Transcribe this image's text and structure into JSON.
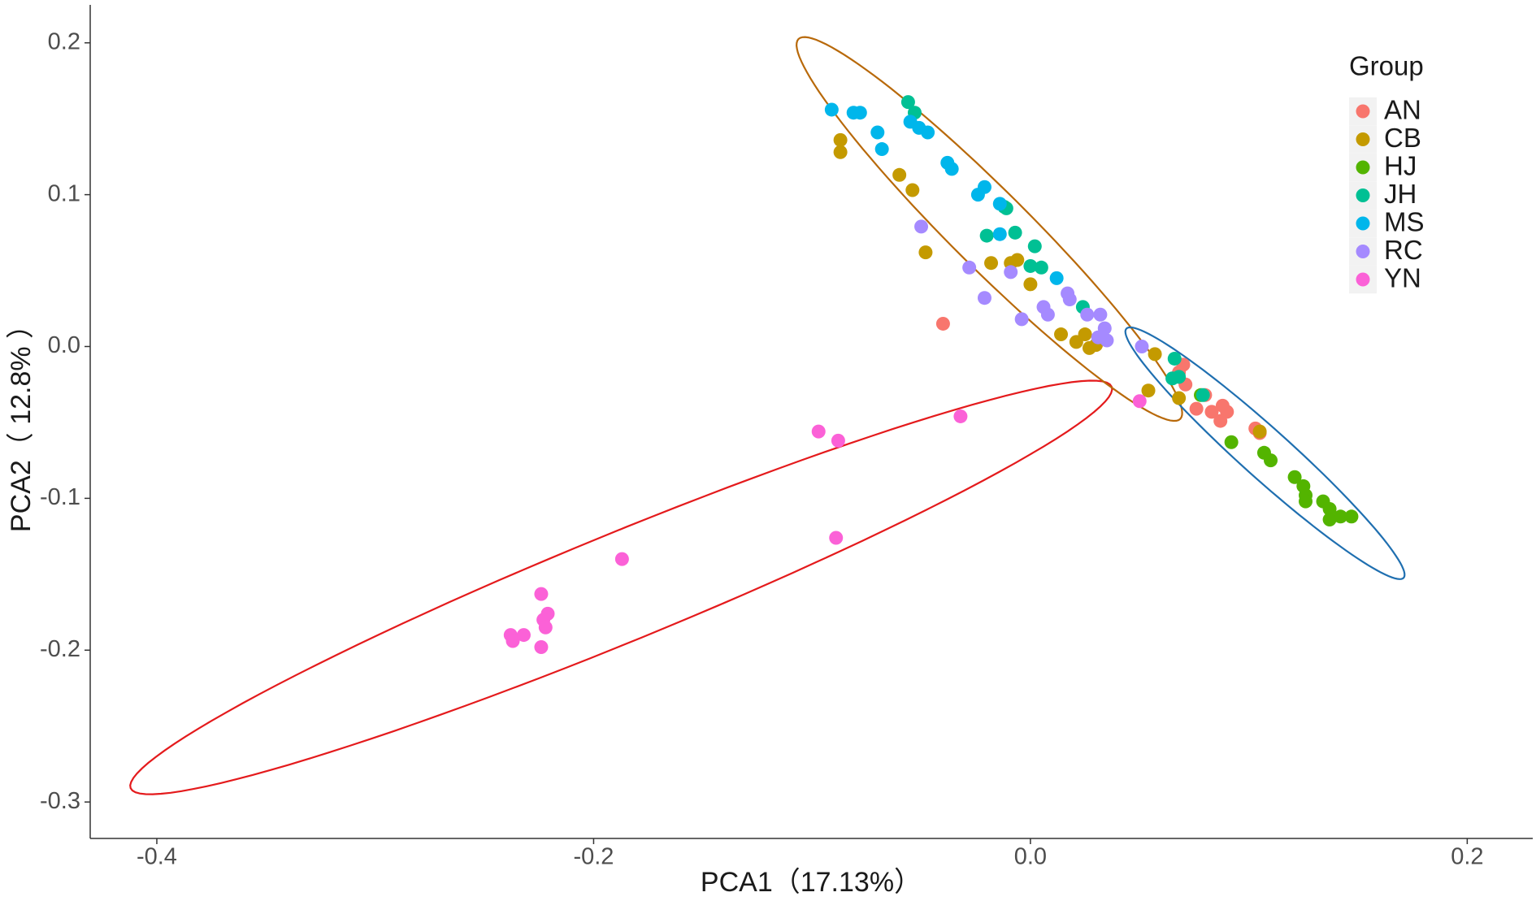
{
  "chart_data": {
    "type": "scatter",
    "x_label": "PCA1（17.13%）",
    "y_label": "PCA2（ 12.8% ）",
    "xlim": [
      -0.4305,
      0.23
    ],
    "ylim": [
      -0.324,
      0.225
    ],
    "xticks": [
      -0.4,
      -0.2,
      {
        "value": 0,
        "label": "0.0"
      },
      0.2
    ],
    "yticks": [
      -0.3,
      -0.2,
      -0.1,
      {
        "value": 0,
        "label": "0.0"
      },
      0.1,
      0.2
    ],
    "legend_title": "Group",
    "legend_position": "top-right",
    "series": [
      {
        "name": "AN",
        "color": "#F8766D",
        "x": [
          -0.04,
          0.07,
          0.068,
          0.08,
          0.076,
          0.083,
          0.088,
          0.09,
          0.087,
          0.103,
          0.105,
          0.071
        ],
        "values": [
          0.015,
          -0.012,
          -0.017,
          -0.032,
          -0.041,
          -0.043,
          -0.039,
          -0.043,
          -0.049,
          -0.054,
          -0.057,
          -0.025
        ]
      },
      {
        "name": "CB",
        "color": "#C49A00",
        "x": [
          -0.087,
          -0.087,
          -0.06,
          -0.054,
          -0.048,
          -0.018,
          -0.009,
          -0.006,
          0.0,
          0.014,
          0.021,
          0.025,
          0.027,
          0.03,
          0.057,
          0.054,
          0.068,
          0.105
        ],
        "values": [
          0.136,
          0.128,
          0.113,
          0.103,
          0.062,
          0.055,
          0.055,
          0.057,
          0.041,
          0.008,
          0.003,
          0.008,
          -0.001,
          0.001,
          -0.005,
          -0.029,
          -0.034,
          -0.056
        ]
      },
      {
        "name": "HJ",
        "color": "#53B400",
        "x": [
          0.092,
          0.107,
          0.11,
          0.121,
          0.125,
          0.126,
          0.126,
          0.134,
          0.137,
          0.137,
          0.142,
          0.147,
          0.078
        ],
        "values": [
          -0.063,
          -0.07,
          -0.075,
          -0.086,
          -0.092,
          -0.098,
          -0.102,
          -0.102,
          -0.107,
          -0.114,
          -0.112,
          -0.112,
          -0.032
        ]
      },
      {
        "name": "JH",
        "color": "#00C094",
        "x": [
          -0.056,
          -0.053,
          -0.012,
          -0.011,
          -0.02,
          -0.007,
          0.002,
          0.0,
          0.005,
          0.024,
          0.066,
          0.065,
          0.068,
          0.079
        ],
        "values": [
          0.161,
          0.154,
          0.092,
          0.091,
          0.073,
          0.075,
          0.066,
          0.053,
          0.052,
          0.026,
          -0.008,
          -0.021,
          -0.02,
          -0.032
        ]
      },
      {
        "name": "MS",
        "color": "#00B6EB",
        "x": [
          -0.091,
          -0.081,
          -0.078,
          -0.07,
          -0.068,
          -0.055,
          -0.051,
          -0.047,
          -0.038,
          -0.036,
          -0.024,
          -0.021,
          -0.014,
          -0.014,
          0.012
        ],
        "values": [
          0.156,
          0.154,
          0.154,
          0.141,
          0.13,
          0.148,
          0.144,
          0.141,
          0.121,
          0.117,
          0.1,
          0.105,
          0.094,
          0.074,
          0.045
        ]
      },
      {
        "name": "RC",
        "color": "#A58AFF",
        "x": [
          -0.05,
          -0.028,
          -0.021,
          -0.009,
          -0.004,
          0.006,
          0.008,
          0.017,
          0.018,
          0.026,
          0.032,
          0.034,
          0.031,
          0.035,
          0.051
        ],
        "values": [
          0.079,
          0.052,
          0.032,
          0.049,
          0.018,
          0.026,
          0.021,
          0.035,
          0.031,
          0.021,
          0.021,
          0.012,
          0.006,
          0.004,
          0.0
        ]
      },
      {
        "name": "YN",
        "color": "#FB61D7",
        "x": [
          -0.032,
          -0.097,
          -0.088,
          -0.089,
          -0.187,
          -0.224,
          -0.221,
          -0.223,
          -0.222,
          -0.232,
          -0.238,
          -0.237,
          -0.224,
          0.05
        ],
        "values": [
          -0.046,
          -0.056,
          -0.062,
          -0.126,
          -0.14,
          -0.163,
          -0.176,
          -0.18,
          -0.185,
          -0.19,
          -0.19,
          -0.194,
          -0.198,
          -0.036
        ]
      }
    ],
    "ellipses": [
      {
        "color": "#E41A1C",
        "center": [
          -0.1874,
          -0.1587
        ],
        "major_end": [
          0.0372,
          -0.0265
        ],
        "minor_end": [
          -0.1969,
          -0.1258
        ]
      },
      {
        "color": "#B8690A",
        "center": [
          -0.0188,
          0.0774
        ],
        "major_end": [
          0.0686,
          -0.0477
        ],
        "minor_end": [
          -0.0063,
          0.0955
        ]
      },
      {
        "color": "#1F6FB0",
        "center": [
          0.1074,
          -0.0703
        ],
        "major_end": [
          0.1709,
          -0.1523
        ],
        "minor_end": [
          0.1148,
          -0.0581
        ]
      }
    ]
  }
}
